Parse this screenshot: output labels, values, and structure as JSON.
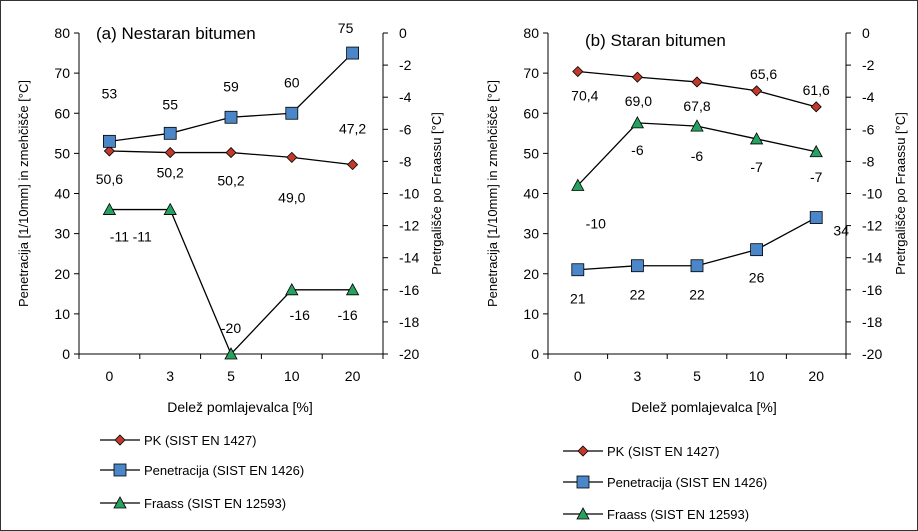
{
  "chart_data": [
    {
      "type": "line",
      "title": "(a) Nestaran bitumen",
      "xlabel": "Delež pomlajevalca [%]",
      "ylabel": "Penetracija [1/10mm] in zmehčišče [°C]",
      "y2label": "Pretrgališče po Fraassu [°C]",
      "categories": [
        "0",
        "3",
        "5",
        "10",
        "20"
      ],
      "ylim": [
        0,
        80
      ],
      "y2lim": [
        -20,
        0
      ],
      "yticks": [
        "0",
        "10",
        "20",
        "30",
        "40",
        "50",
        "60",
        "70",
        "80"
      ],
      "y2ticks": [
        "0",
        "-2",
        "-4",
        "-6",
        "-8",
        "-10",
        "-12",
        "-14",
        "-16",
        "-18",
        "-20"
      ],
      "series": [
        {
          "name": "PK (SIST EN 1427)",
          "axis": "left",
          "marker": "diamond",
          "color": "#c0392b",
          "values": [
            50.6,
            50.2,
            50.2,
            49.0,
            47.2
          ],
          "labels": [
            "50,6",
            "50,2",
            "50,2",
            "49,0",
            "47,2"
          ]
        },
        {
          "name": "Penetracija (SIST EN 1426)",
          "axis": "left",
          "marker": "square",
          "color": "#4a86c8",
          "values": [
            53,
            55,
            59,
            60,
            75
          ],
          "labels": [
            "53",
            "55",
            "59",
            "60",
            "75"
          ]
        },
        {
          "name": "Fraass (SIST EN 12593)",
          "axis": "right",
          "marker": "triangle",
          "color": "#27a060",
          "values": [
            -11,
            -11,
            -20,
            -16,
            -16
          ],
          "labels": [
            "-11",
            "-11",
            "-20",
            "-16",
            "-16"
          ]
        }
      ]
    },
    {
      "type": "line",
      "title": "(b) Staran bitumen",
      "xlabel": "Delež pomlajevalca [%]",
      "ylabel": "Penetracija [1/10mm] in zmehčišče [°C]",
      "y2label": "Pretrgališče po Fraassu [°C]",
      "categories": [
        "0",
        "3",
        "5",
        "10",
        "20"
      ],
      "ylim": [
        0,
        80
      ],
      "y2lim": [
        -20,
        0
      ],
      "yticks": [
        "0",
        "10",
        "20",
        "30",
        "40",
        "50",
        "60",
        "70",
        "80"
      ],
      "y2ticks": [
        "0",
        "-2",
        "-4",
        "-6",
        "-8",
        "-10",
        "-12",
        "-14",
        "-16",
        "-18",
        "-20"
      ],
      "series": [
        {
          "name": "PK (SIST EN 1427)",
          "axis": "left",
          "marker": "diamond",
          "color": "#c0392b",
          "values": [
            70.4,
            69.0,
            67.8,
            65.6,
            61.6
          ],
          "labels": [
            "70,4",
            "69,0",
            "67,8",
            "65,6",
            "61,6"
          ]
        },
        {
          "name": "Penetracija (SIST EN 1426)",
          "axis": "left",
          "marker": "square",
          "color": "#4a86c8",
          "values": [
            21,
            22,
            22,
            26,
            34
          ],
          "labels": [
            "21",
            "22",
            "22",
            "26",
            "34"
          ]
        },
        {
          "name": "Fraass (SIST EN 12593)",
          "axis": "right",
          "marker": "triangle",
          "color": "#27a060",
          "values": [
            -9.5,
            -5.6,
            -5.8,
            -6.6,
            -7.4
          ],
          "labels": [
            "-10",
            "-6",
            "-6",
            "-7",
            "-7"
          ]
        }
      ]
    }
  ]
}
